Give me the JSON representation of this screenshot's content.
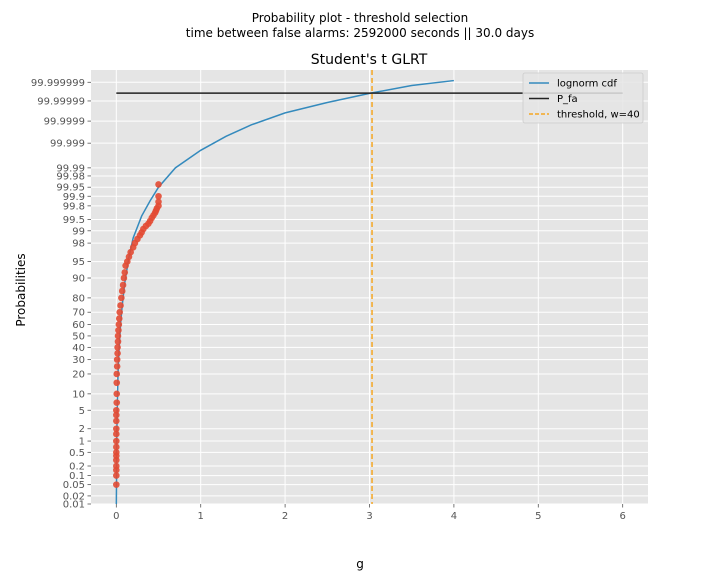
{
  "figure": {
    "suptitle_line1": "Probability plot - threshold selection",
    "suptitle_line2": "time between false alarms: 2592000 seconds || 30.0 days",
    "background": "#e5e5e5",
    "grid_color": "#ffffff"
  },
  "chart_data": {
    "type": "scatter",
    "title": "Student's t GLRT",
    "xlabel": "g",
    "ylabel": "Probabilities",
    "xlim": [
      -0.3,
      6.3
    ],
    "x_ticks": [
      0,
      1,
      2,
      3,
      4,
      5,
      6
    ],
    "y_scale": "probit",
    "y_ticks": [
      "0.01",
      "0.02",
      "0.05",
      "0.1",
      "0.2",
      "0.5",
      "1",
      "2",
      "5",
      "10",
      "20",
      "30",
      "40",
      "50",
      "60",
      "70",
      "80",
      "90",
      "95",
      "98",
      "99",
      "99.5",
      "99.8",
      "99.9",
      "99.95",
      "99.98",
      "99.99",
      "99.999",
      "99.9999",
      "99.99999",
      "99.999999"
    ],
    "grid": true,
    "legend_position": "top-right",
    "series": [
      {
        "name": "lognorm cdf",
        "type": "line",
        "color": "#348abd",
        "x": [
          0.0,
          0.002,
          0.005,
          0.01,
          0.02,
          0.03,
          0.05,
          0.07,
          0.1,
          0.15,
          0.2,
          0.3,
          0.4,
          0.5,
          0.7,
          1.0,
          1.3,
          1.6,
          2.0,
          2.5,
          3.0,
          3.5,
          4.0
        ],
        "y": [
          0.01,
          0.05,
          1,
          5,
          20,
          35,
          60,
          75,
          88,
          96,
          98.5,
          99.6,
          99.86,
          99.95,
          99.99,
          99.998,
          99.9995,
          99.99985,
          99.99996,
          99.999988,
          99.999996,
          99.9999985,
          99.9999992
        ]
      },
      {
        "name": "P_fa",
        "type": "hline",
        "color": "#222222",
        "y": 99.9999961,
        "x_range": [
          0,
          6
        ]
      },
      {
        "name": "threshold, w=40",
        "type": "vline",
        "color": "#f5a623",
        "x": 3.03
      },
      {
        "name": "",
        "type": "scatter",
        "color": "#e24a33",
        "x": [
          0.0,
          0.0,
          0.0,
          0.0,
          0.0,
          0.0,
          0.0,
          0.0,
          0.0,
          0.0,
          0.0,
          0.0,
          0.0,
          0.0,
          0.005,
          0.005,
          0.005,
          0.005,
          0.01,
          0.01,
          0.015,
          0.015,
          0.02,
          0.02,
          0.025,
          0.03,
          0.035,
          0.04,
          0.05,
          0.06,
          0.07,
          0.08,
          0.09,
          0.1,
          0.11,
          0.13,
          0.15,
          0.17,
          0.2,
          0.22,
          0.25,
          0.28,
          0.3,
          0.32,
          0.35,
          0.38,
          0.4,
          0.42,
          0.44,
          0.46,
          0.47,
          0.48,
          0.5,
          0.5,
          0.5,
          0.5
        ],
        "y": [
          0.05,
          0.1,
          0.15,
          0.2,
          0.3,
          0.4,
          0.5,
          0.7,
          1,
          1.5,
          2,
          3,
          4,
          5,
          7,
          10,
          15,
          20,
          25,
          30,
          35,
          40,
          45,
          50,
          55,
          60,
          65,
          70,
          75,
          80,
          84,
          87,
          90,
          92,
          94,
          95,
          96,
          96.8,
          97.5,
          98,
          98.4,
          98.7,
          98.9,
          99.1,
          99.25,
          99.35,
          99.45,
          99.55,
          99.62,
          99.68,
          99.72,
          99.76,
          99.8,
          99.85,
          99.9,
          99.96
        ]
      }
    ]
  }
}
